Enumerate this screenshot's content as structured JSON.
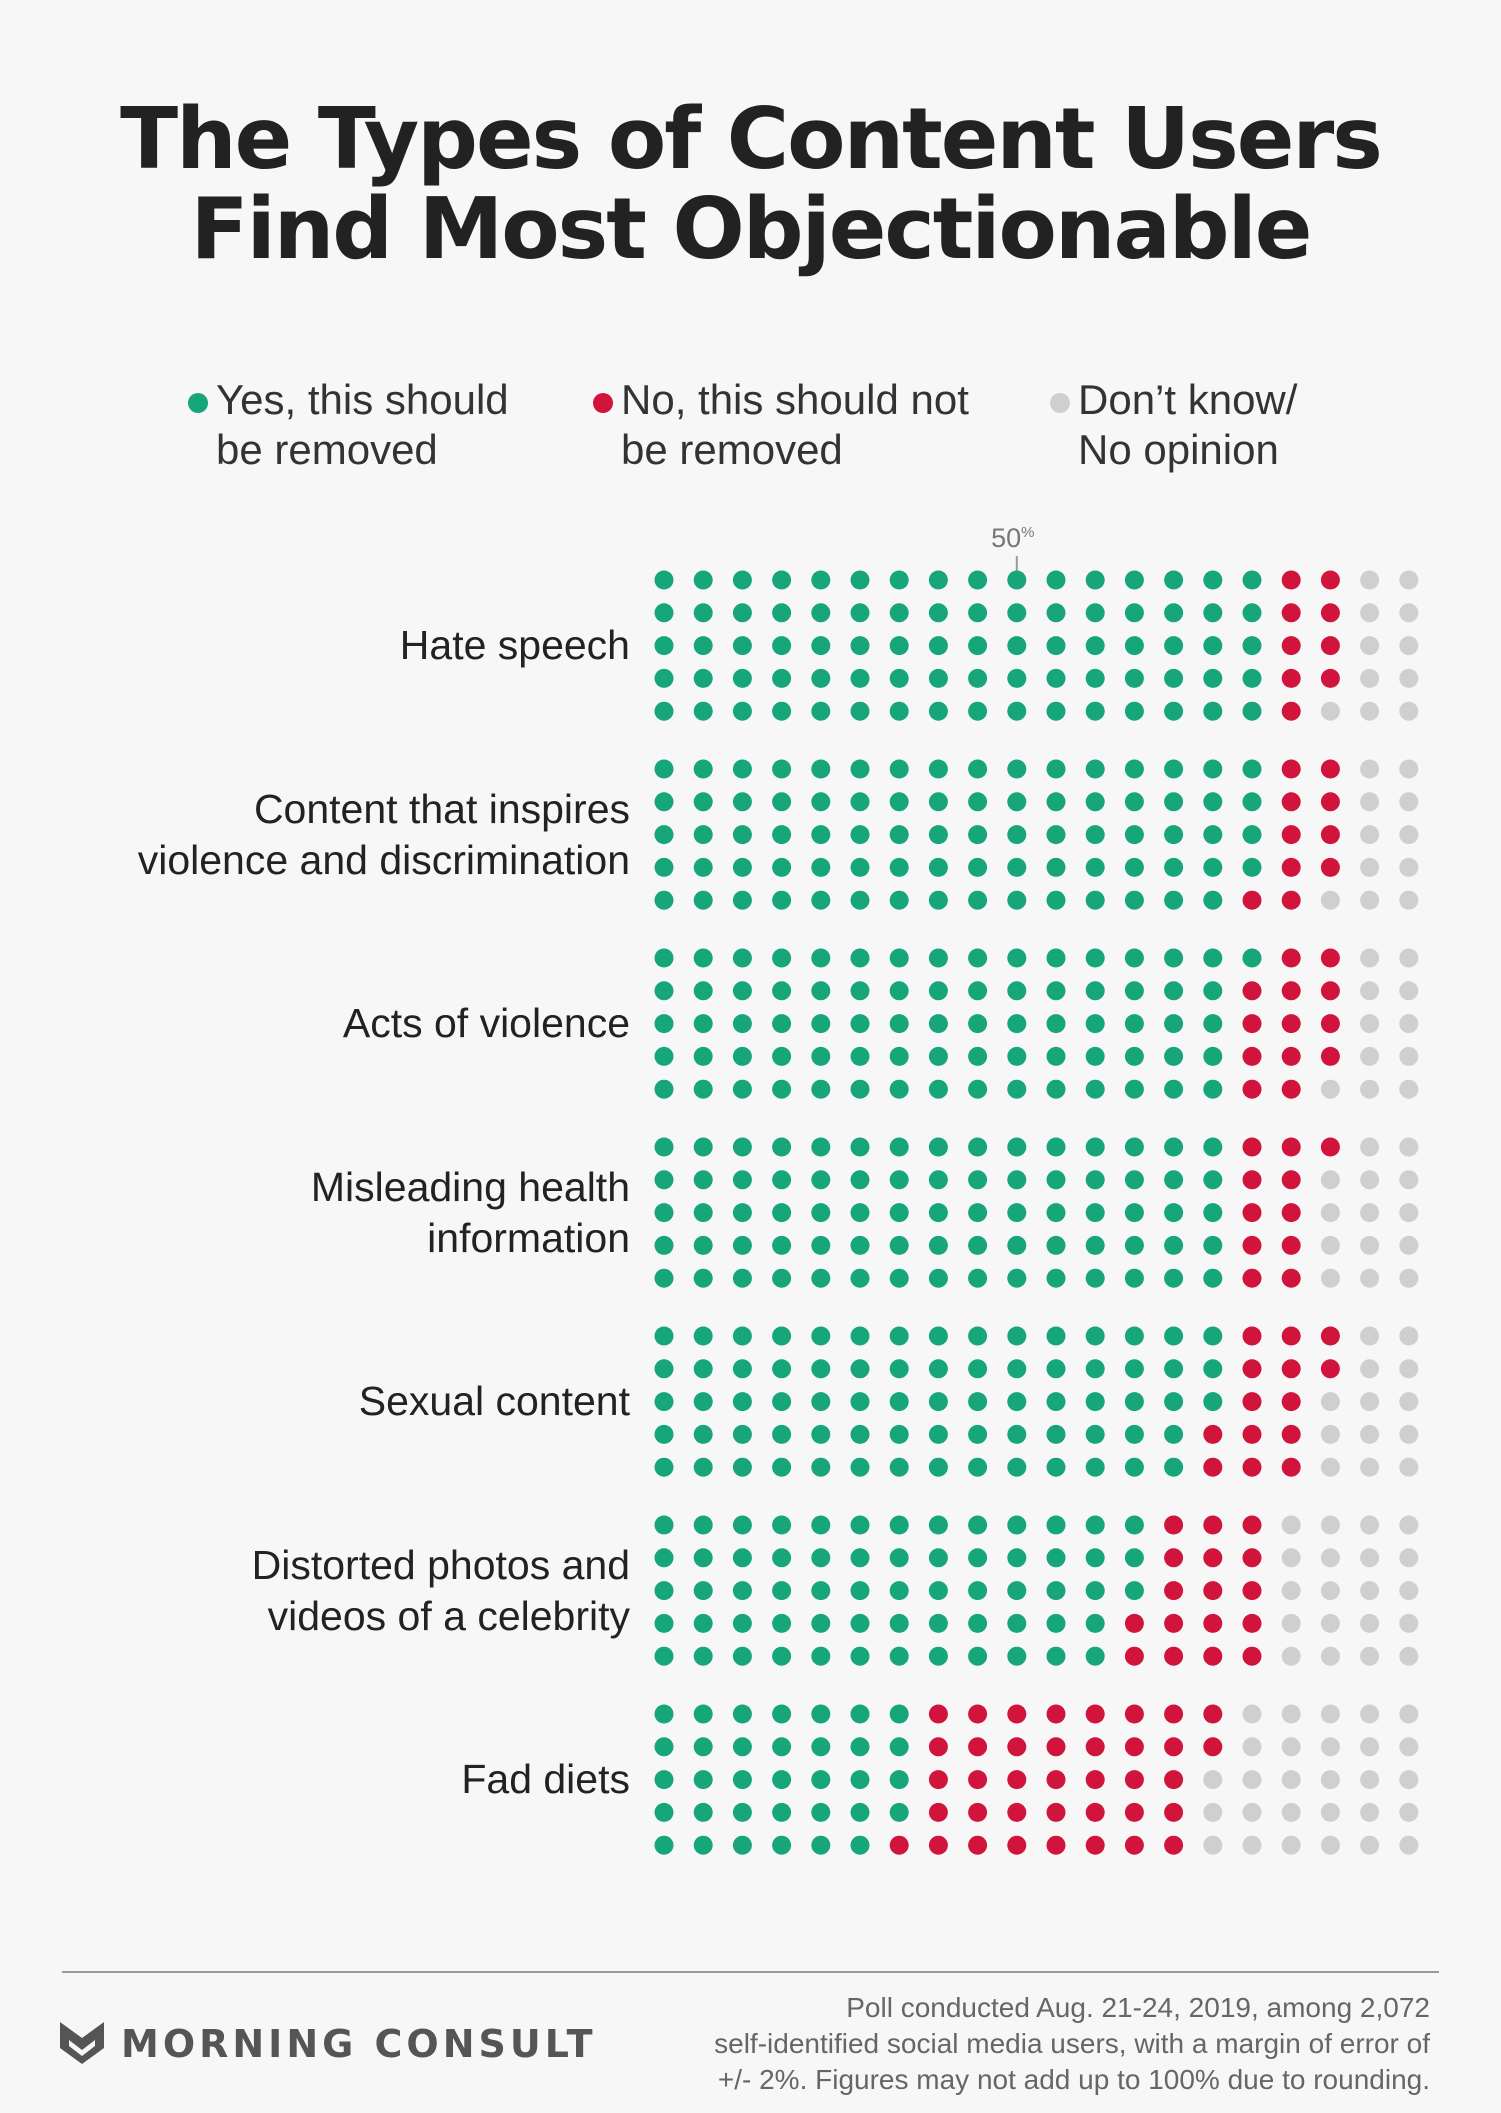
{
  "title": {
    "line1": "The Types of Content Users",
    "line2": "Find Most Objectionable"
  },
  "colors": {
    "yes": "#16a67a",
    "no": "#d0143c",
    "dont_know": "#cfcfcf"
  },
  "legend": [
    {
      "key": "yes",
      "label": "Yes, this should\nbe removed"
    },
    {
      "key": "no",
      "label": "No, this should not\nbe removed"
    },
    {
      "key": "dont_know",
      "label": "Don’t know/\nNo opinion"
    }
  ],
  "marker_label": "50%",
  "chart_data": {
    "type": "waffle",
    "dots_per_row": 100,
    "series_names": [
      "Yes, this should be removed",
      "No, this should not be removed",
      "Don’t know/ No opinion"
    ],
    "categories": [
      {
        "label": "Hate speech",
        "yes": 80,
        "no": 9,
        "dont_know": 11
      },
      {
        "label": "Content that inspires\nviolence and discrimination",
        "yes": 79,
        "no": 10,
        "dont_know": 11
      },
      {
        "label": "Acts of violence",
        "yes": 76,
        "no": 13,
        "dont_know": 11
      },
      {
        "label": "Misleading health\ninformation",
        "yes": 75,
        "no": 11,
        "dont_know": 14
      },
      {
        "label": "Sexual content",
        "yes": 73,
        "no": 14,
        "dont_know": 13
      },
      {
        "label": "Distorted photos and\nvideos of a celebrity",
        "yes": 63,
        "no": 17,
        "dont_know": 20
      },
      {
        "label": "Fad diets",
        "yes": 34,
        "no": 38,
        "dont_know": 28
      }
    ]
  },
  "brand": "MORNING CONSULT",
  "footnote": "Poll conducted Aug. 21-24, 2019, among 2,072\nself-identified social media users, with a margin of error of\n+/- 2%. Figures may not add up to 100% due to rounding."
}
